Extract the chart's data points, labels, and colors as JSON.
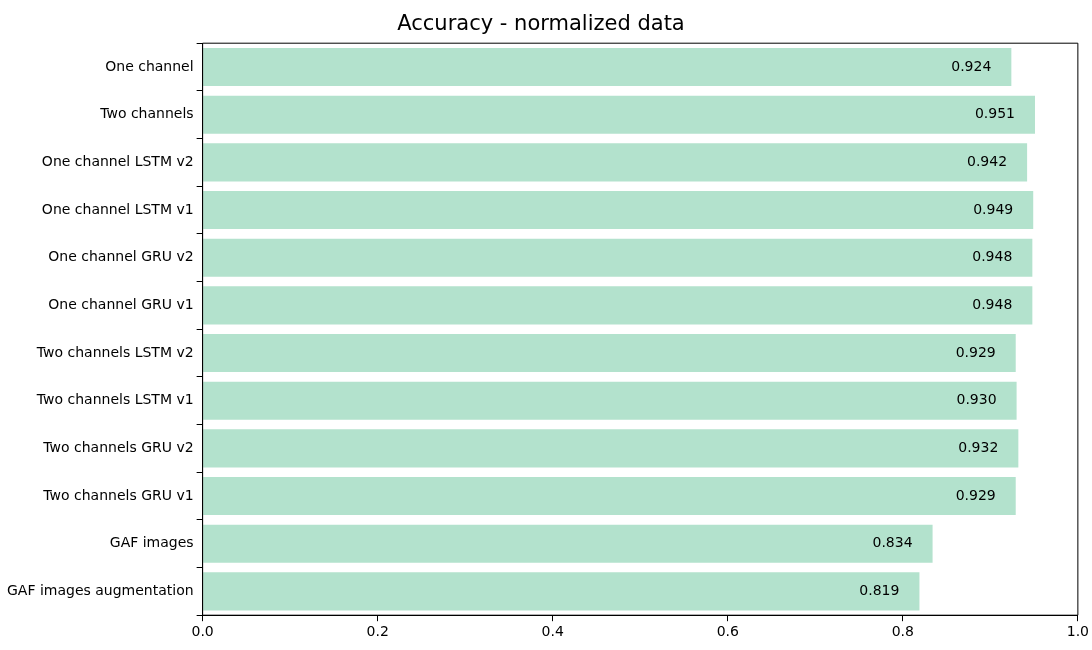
{
  "chart_data": {
    "type": "bar",
    "orientation": "horizontal",
    "title": "Accuracy - normalized data",
    "categories": [
      "One channel",
      "Two channels",
      "One channel LSTM v2",
      "One channel LSTM v1",
      "One channel GRU v2",
      "One channel GRU v1",
      "Two channels LSTM v2",
      "Two channels LSTM v1",
      "Two channels GRU v2",
      "Two channels GRU v1",
      "GAF images",
      "GAF images augmentation"
    ],
    "values": [
      0.924,
      0.951,
      0.942,
      0.949,
      0.948,
      0.948,
      0.929,
      0.93,
      0.932,
      0.929,
      0.834,
      0.819
    ],
    "value_labels": [
      "0.924",
      "0.951",
      "0.942",
      "0.949",
      "0.948",
      "0.948",
      "0.929",
      "0.930",
      "0.932",
      "0.929",
      "0.834",
      "0.819"
    ],
    "color": "#b3e2cd",
    "xlim": [
      0,
      1
    ],
    "xticks": [
      {
        "value": 0,
        "label": "0.0"
      },
      {
        "value": 0.2,
        "label": "0.2"
      },
      {
        "value": 0.4,
        "label": "0.4"
      },
      {
        "value": 0.6,
        "label": "0.6"
      },
      {
        "value": 0.8,
        "label": "0.8"
      },
      {
        "value": 1,
        "label": "1.0"
      }
    ],
    "grid": false,
    "legend": false
  }
}
